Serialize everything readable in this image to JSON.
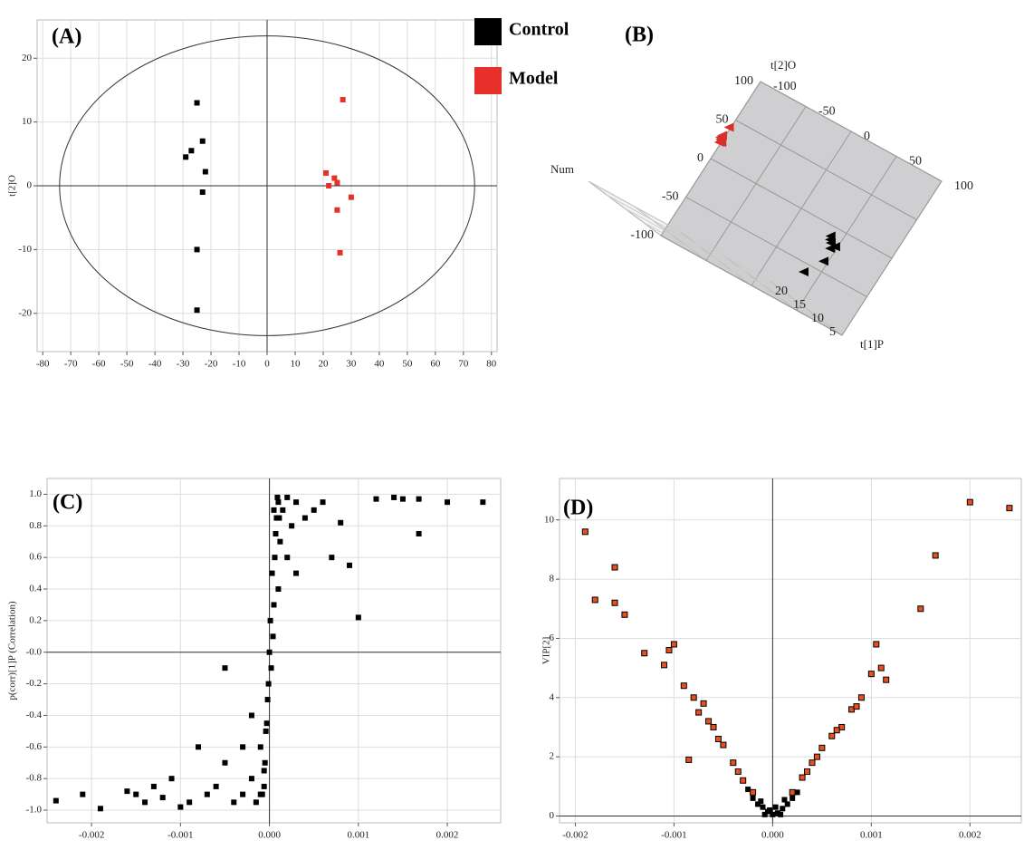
{
  "chart_data": [
    {
      "type": "scatter",
      "annotation": "(A)",
      "ylabel": "t[2]O",
      "xlim": [
        -82,
        82
      ],
      "ylim": [
        -26,
        26
      ],
      "xticks": [
        -80,
        -70,
        -60,
        -50,
        -40,
        -30,
        -20,
        -10,
        0,
        10,
        20,
        30,
        40,
        50,
        60,
        70,
        80
      ],
      "yticks": [
        -20,
        -10,
        0,
        10,
        20
      ],
      "grid": true,
      "zero_lines": true,
      "legend": "outside-top-right",
      "ellipse": {
        "rx": 74,
        "ry": 23.5
      },
      "series": [
        {
          "name": "Control",
          "color": "#000000",
          "x": [
            -25,
            -23,
            -27,
            -29,
            -22,
            -23,
            -25,
            -25
          ],
          "values": [
            13,
            7,
            5.5,
            4.5,
            2.2,
            -1,
            -10,
            -19.5
          ]
        },
        {
          "name": "Model",
          "color": "#e8302a",
          "x": [
            27,
            21,
            24,
            25,
            22,
            30,
            25,
            26
          ],
          "values": [
            13.5,
            2,
            1.2,
            0.5,
            0,
            -1.8,
            -3.8,
            -10.5
          ]
        }
      ]
    },
    {
      "type": "scatter3d",
      "annotation": "(B)",
      "xlabel": "t[1]P",
      "ylabel": "t[2]O",
      "zlabel": "Num",
      "xlim": [
        -100,
        100
      ],
      "ylim": [
        -100,
        100
      ],
      "zlim": [
        0,
        20
      ],
      "xticks": [
        -100,
        -50,
        0,
        50,
        100
      ],
      "yticks": [
        -100,
        -50,
        0,
        50,
        100
      ],
      "zticks": [
        5,
        10,
        15,
        20
      ],
      "series": [
        {
          "color": "#d8302a",
          "x": [
            -50,
            -55,
            -58,
            -60,
            -62,
            -57,
            -40
          ],
          "y": [
            20,
            18,
            17,
            15,
            14,
            16,
            30
          ],
          "z": [
            12,
            11,
            10,
            9,
            9,
            10,
            14
          ]
        },
        {
          "color": "#000000",
          "x": [
            60,
            62,
            58,
            65,
            70,
            55,
            40
          ],
          "y": [
            -20,
            -18,
            -25,
            -15,
            -22,
            -40,
            -60
          ],
          "z": [
            4,
            5,
            3,
            6,
            5,
            2,
            1
          ]
        }
      ]
    },
    {
      "type": "scatter",
      "annotation": "(C)",
      "ylabel": "p(corr)[1]P (Correlation)",
      "xlim": [
        -0.0025,
        0.0026
      ],
      "ylim": [
        -1.08,
        1.1
      ],
      "xticks": [
        -0.002,
        -0.001,
        {
          "value": 0,
          "label": "0.000"
        },
        0.001,
        0.002
      ],
      "yticks": [
        {
          "value": 1,
          "label": "1.0"
        },
        0.8,
        0.6,
        0.4,
        0.2,
        {
          "value": 0,
          "label": "-0.0"
        },
        -0.2,
        -0.4,
        -0.6,
        -0.8,
        {
          "value": -1,
          "label": "-1.0"
        }
      ],
      "grid": true,
      "zero_lines": true,
      "series": [
        {
          "color": "#000000",
          "x": [
            0.0024,
            0.002,
            0.00168,
            0.00168,
            0.0015,
            0.0014,
            0.0012,
            0.001,
            0.0009,
            0.0008,
            0.0007,
            0.0006,
            0.0005,
            0.0004,
            0.0003,
            0.0003,
            0.00025,
            0.0002,
            0.0002,
            0.00015,
            0.00012,
            0.0001,
            0.0001,
            8e-05,
            6e-05,
            5e-05,
            4e-05,
            2e-05,
            0,
            -2e-05,
            -4e-05,
            -5e-05,
            -6e-05,
            -0.0001,
            -0.0001,
            -0.00015,
            -0.0002,
            -0.0002,
            -0.0003,
            -0.0003,
            -0.0004,
            -0.0005,
            -0.0005,
            -0.0006,
            -0.0007,
            -0.0008,
            -0.0009,
            -0.001,
            -0.0011,
            -0.0012,
            -0.0013,
            -0.0014,
            -0.0015,
            -0.0016,
            -0.0019,
            -0.0021,
            -0.0024,
            5e-05,
            7e-05,
            3e-05,
            1e-05,
            -1e-05,
            -3e-05,
            -6e-05,
            -8e-05,
            9e-05,
            0.00011
          ],
          "values": [
            0.95,
            0.95,
            0.97,
            0.75,
            0.97,
            0.98,
            0.97,
            0.22,
            0.55,
            0.82,
            0.6,
            0.95,
            0.9,
            0.85,
            0.5,
            0.95,
            0.8,
            0.98,
            0.6,
            0.9,
            0.7,
            0.95,
            0.4,
            0.85,
            0.6,
            0.3,
            0.1,
            -0.1,
            0,
            -0.3,
            -0.5,
            -0.7,
            -0.85,
            -0.9,
            -0.6,
            -0.95,
            -0.8,
            -0.4,
            -0.9,
            -0.6,
            -0.95,
            -0.7,
            -0.1,
            -0.85,
            -0.9,
            -0.6,
            -0.95,
            -0.98,
            -0.8,
            -0.92,
            -0.85,
            -0.95,
            -0.9,
            -0.88,
            -0.99,
            -0.9,
            -0.94,
            0.9,
            0.75,
            0.5,
            0.2,
            -0.2,
            -0.45,
            -0.75,
            -0.9,
            0.98,
            0.85
          ]
        }
      ]
    },
    {
      "type": "scatter",
      "annotation": "(D)",
      "ylabel": "VIP[2]",
      "xlim": [
        -0.00216,
        0.00252
      ],
      "ylim": [
        -0.23,
        11.4
      ],
      "xticks": [
        -0.002,
        -0.001,
        {
          "value": 0,
          "label": "0.000"
        },
        0.001,
        0.002
      ],
      "yticks": [
        0,
        2,
        4,
        6,
        8,
        10
      ],
      "grid": true,
      "zero_lines": true,
      "series": [
        {
          "color": "#e8501e",
          "x": [
            -0.0019,
            -0.0018,
            -0.0016,
            -0.0016,
            -0.0015,
            -0.0013,
            -0.0011,
            -0.00105,
            -0.001,
            -0.0009,
            -0.0008,
            -0.00085,
            -0.0007,
            -0.0006,
            -0.0005,
            -0.0004,
            -0.0003,
            -0.0002,
            0.0002,
            0.0003,
            0.0004,
            0.0005,
            0.0006,
            0.0007,
            0.0008,
            0.0009,
            0.001,
            0.00105,
            0.0011,
            0.00115,
            0.0015,
            0.00165,
            0.002,
            0.0024,
            -0.00075,
            0.00085,
            -0.00055,
            0.00045,
            -0.00035,
            0.00035,
            -0.00065,
            0.00065
          ],
          "values": [
            9.6,
            7.3,
            8.4,
            7.2,
            6.8,
            5.5,
            5.1,
            5.6,
            5.8,
            4.4,
            4.0,
            1.9,
            3.8,
            3.0,
            2.4,
            1.8,
            1.2,
            0.8,
            0.8,
            1.3,
            1.8,
            2.3,
            2.7,
            3.0,
            3.6,
            4.0,
            4.8,
            5.8,
            5.0,
            4.6,
            7.0,
            8.8,
            10.6,
            10.4,
            3.5,
            3.7,
            2.6,
            2.0,
            1.5,
            1.5,
            3.2,
            2.9
          ]
        },
        {
          "color": "#000000",
          "x": [
            -0.0002,
            -0.00015,
            -0.0001,
            -5e-05,
            0,
            5e-05,
            0.0001,
            0.00015,
            0.0002,
            -0.00025,
            0.00025,
            -8e-05,
            8e-05,
            -3e-05,
            3e-05,
            -0.00012,
            0.00012
          ],
          "values": [
            0.6,
            0.4,
            0.3,
            0.15,
            0.05,
            0.1,
            0.25,
            0.4,
            0.6,
            0.9,
            0.8,
            0.05,
            0.05,
            0.2,
            0.3,
            0.5,
            0.55
          ]
        }
      ]
    }
  ]
}
